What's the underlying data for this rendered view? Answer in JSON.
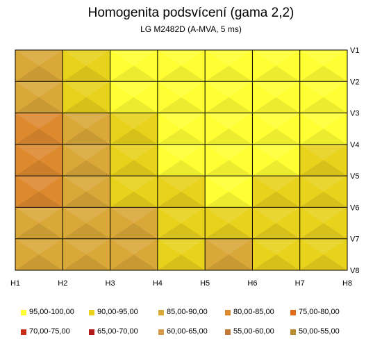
{
  "chart_data": {
    "type": "heatmap",
    "title": "Homogenita podsvícení (gama 2,2)",
    "subtitle": "LG M2482D (A-MVA, 5 ms)",
    "columns": [
      "H1",
      "H2",
      "H3",
      "H4",
      "H5",
      "H6",
      "H7",
      "H8"
    ],
    "rows": [
      "V1",
      "V2",
      "V3",
      "V4",
      "V5",
      "V6",
      "V7",
      "V8"
    ],
    "values": [
      [
        88,
        94,
        96,
        98,
        99,
        98,
        97,
        97
      ],
      [
        84,
        93,
        95,
        97,
        98,
        98,
        97,
        96
      ],
      [
        82,
        88,
        93,
        96,
        97,
        98,
        97,
        96
      ],
      [
        82,
        86,
        92,
        95,
        97,
        98,
        97,
        95
      ],
      [
        81,
        84,
        89,
        93,
        96,
        97,
        95,
        91
      ],
      [
        82,
        84,
        87,
        92,
        95,
        95,
        91,
        89
      ],
      [
        86,
        88,
        88,
        91,
        93,
        92,
        94,
        97
      ],
      [
        88,
        88,
        88,
        89,
        88,
        86,
        91,
        94
      ]
    ],
    "legend": [
      {
        "label": "95,00-100,00",
        "color": "#ffff33"
      },
      {
        "label": "90,00-95,00",
        "color": "#e8d21c"
      },
      {
        "label": "85,00-90,00",
        "color": "#d9a838"
      },
      {
        "label": "80,00-85,00",
        "color": "#dd8a2f"
      },
      {
        "label": "75,00-80,00",
        "color": "#e06d1a"
      },
      {
        "label": "70,00-75,00",
        "color": "#cc2a1a"
      },
      {
        "label": "65,00-70,00",
        "color": "#b01a1a"
      },
      {
        "label": "60,00-65,00",
        "color": "#d89a4a"
      },
      {
        "label": "55,00-60,00",
        "color": "#c27a32"
      },
      {
        "label": "50,00-55,00",
        "color": "#b88a2e"
      }
    ],
    "legend_position": "bottom",
    "grid": true
  }
}
